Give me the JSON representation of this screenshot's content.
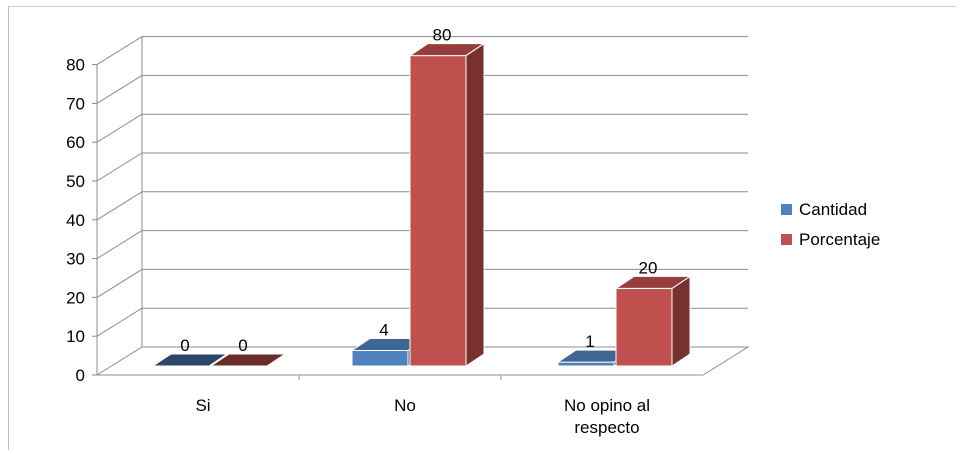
{
  "chart_data": {
    "type": "bar",
    "categories": [
      "Si",
      "No",
      "No opino al respecto"
    ],
    "series": [
      {
        "name": "Cantidad",
        "values": [
          0,
          4,
          1
        ],
        "color": "#4f81bd"
      },
      {
        "name": "Porcentaje",
        "values": [
          0,
          80,
          20
        ],
        "color": "#c0504d"
      }
    ],
    "ylim": [
      0,
      80
    ],
    "yticks": [
      0,
      10,
      20,
      30,
      40,
      50,
      60,
      70,
      80
    ],
    "grid": true,
    "legend": "right",
    "style": "3d-clustered-column"
  }
}
